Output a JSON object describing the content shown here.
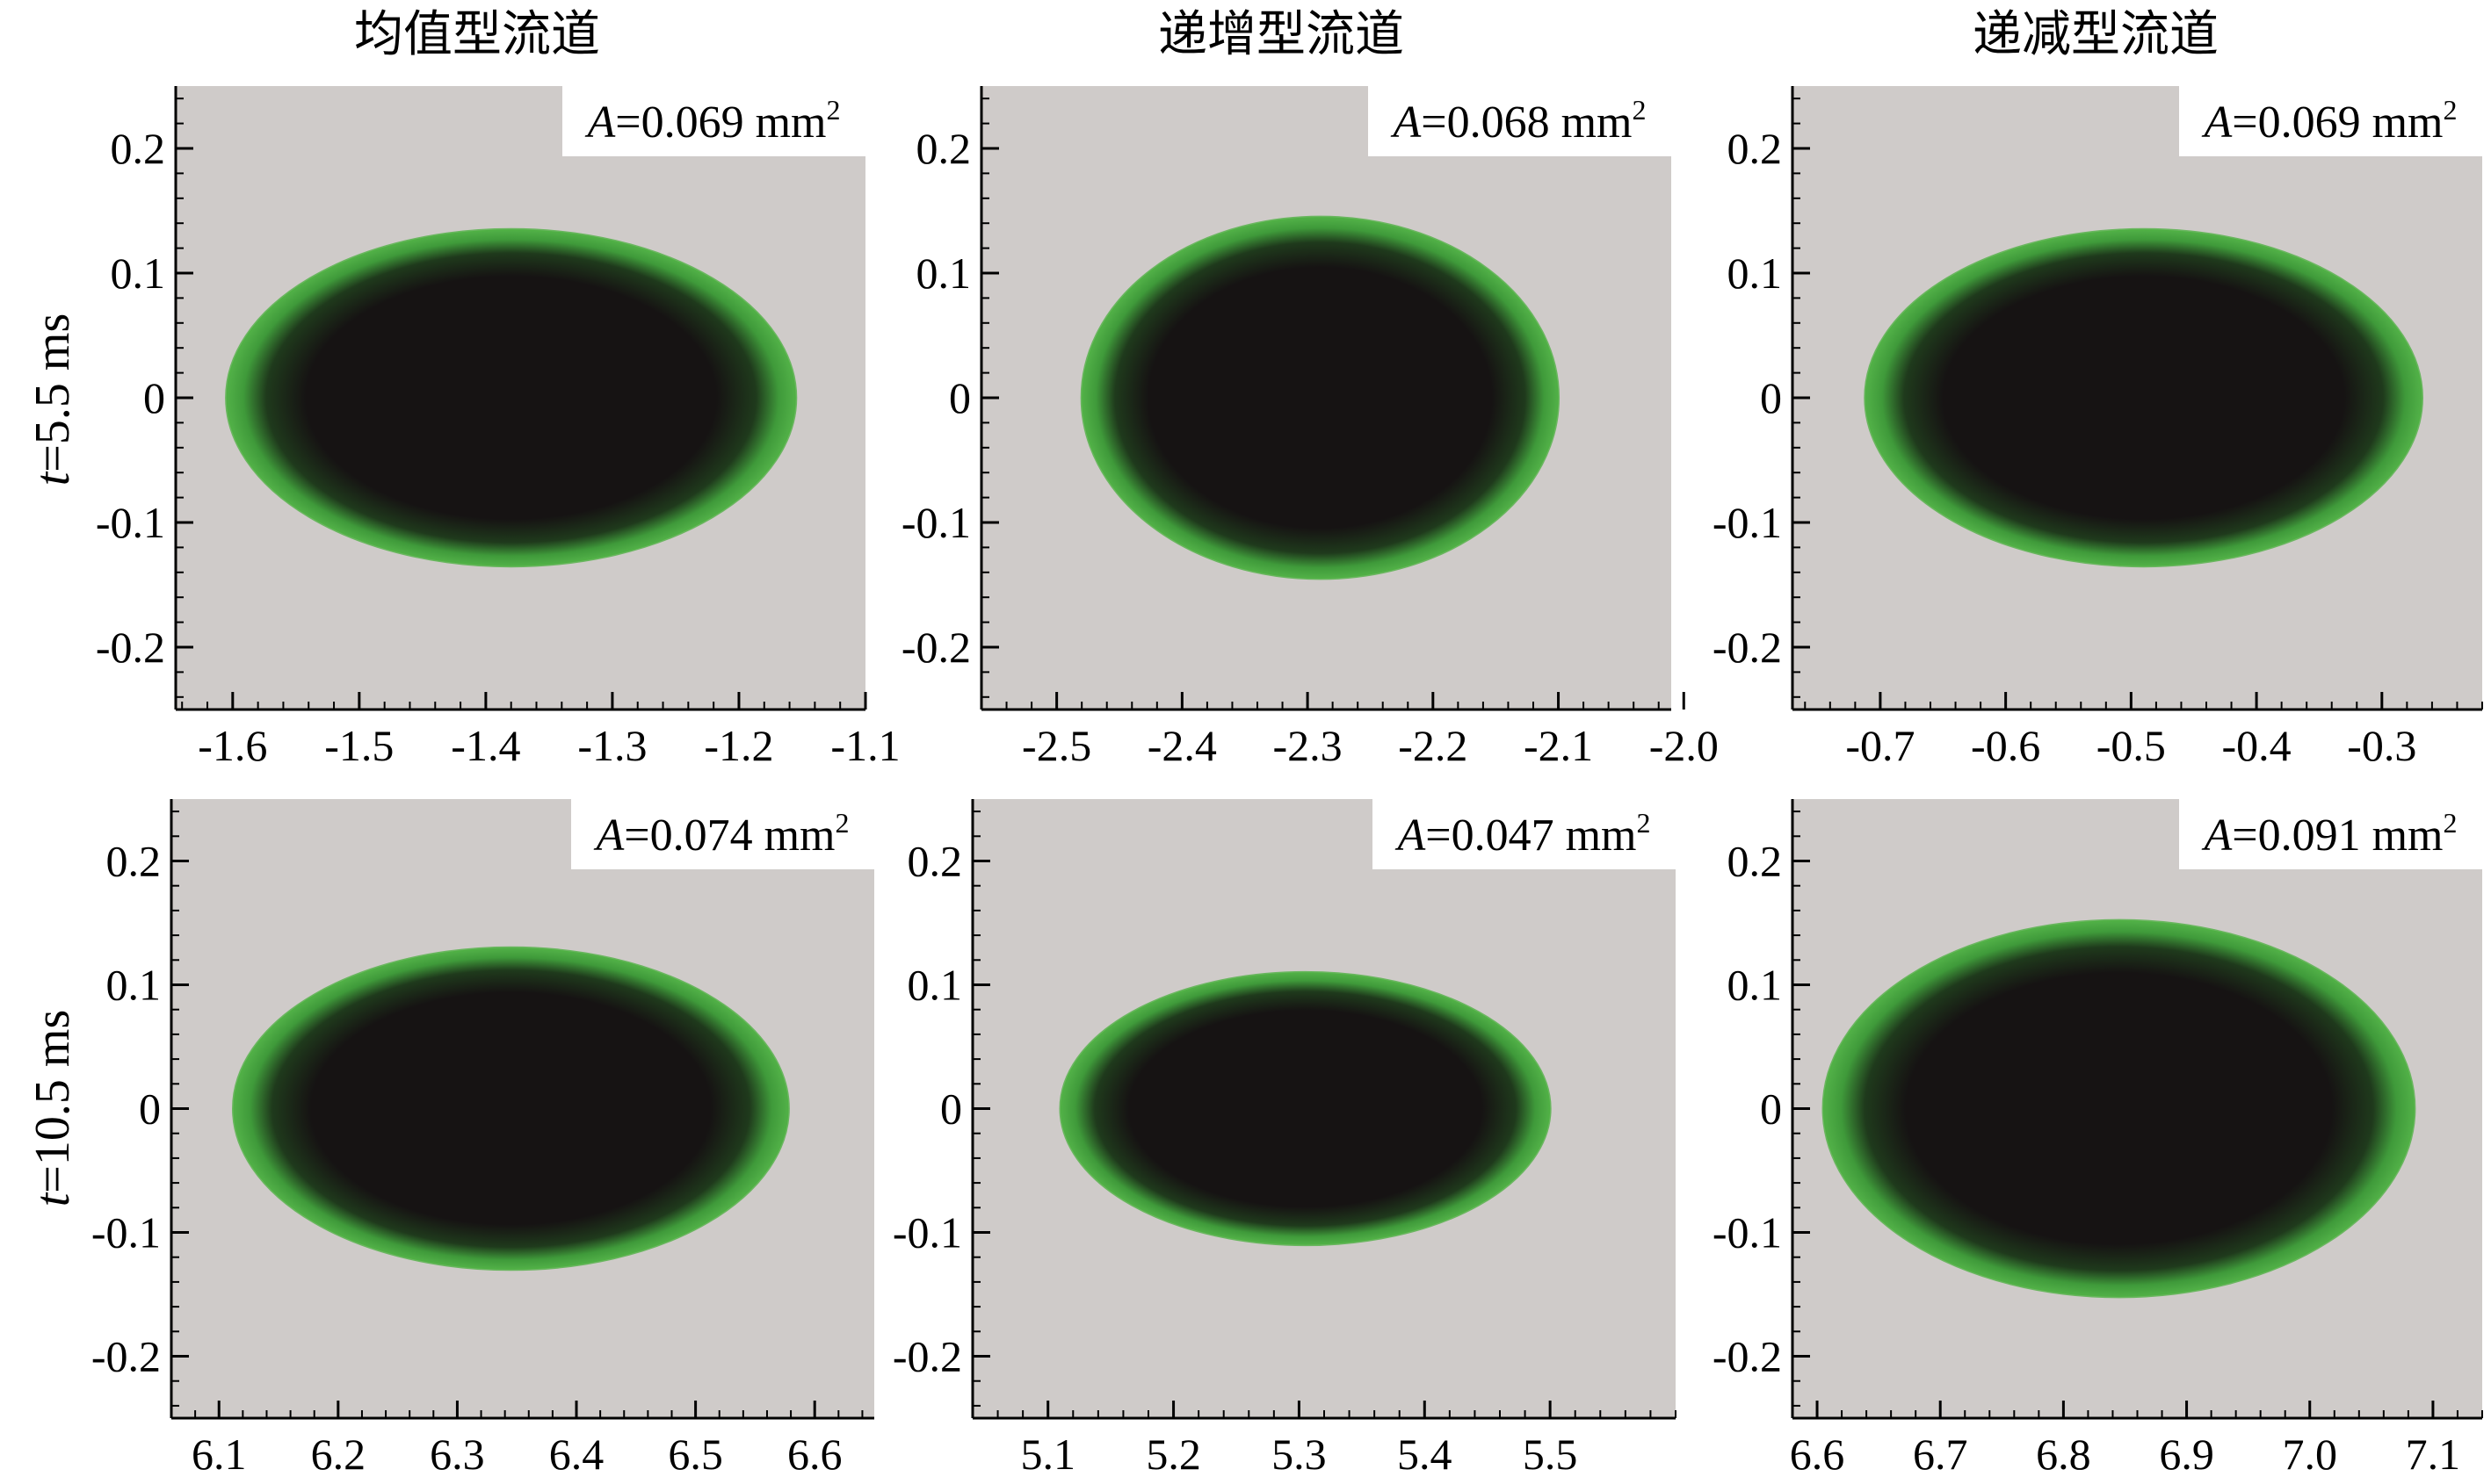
{
  "column_titles": [
    "均值型流道",
    "递增型流道",
    "递减型流道"
  ],
  "row_labels": [
    {
      "symbol": "t",
      "text": "=5.5 ms"
    },
    {
      "symbol": "t",
      "text": "=10.5 ms"
    }
  ],
  "colors": {
    "background": "#cfcbc9",
    "bubble_core": "#161313",
    "bubble_edge": "#4fb044",
    "annotation_box": "#ffffff"
  },
  "chart_data": [
    {
      "type": "contour",
      "row": 0,
      "col": 0,
      "area_symbol": "A",
      "area_text": "=0.069 mm",
      "area_sup": "2",
      "xlim": [
        -1.645,
        -1.1
      ],
      "ylim": [
        -0.25,
        0.25
      ],
      "xticks": [
        "-1.6",
        "-1.5",
        "-1.4",
        "-1.3",
        "-1.2",
        "-1.1"
      ],
      "xtick_values": [
        -1.6,
        -1.5,
        -1.4,
        -1.3,
        -1.2,
        -1.1
      ],
      "yticks": [
        "0.2",
        "0.1",
        "0",
        "-0.1",
        "-0.2"
      ],
      "ytick_values": [
        0.2,
        0.1,
        0,
        -0.1,
        -0.2
      ],
      "bubble": {
        "cx": -1.38,
        "cy": 0.0,
        "rx": 0.225,
        "ry": 0.135
      }
    },
    {
      "type": "contour",
      "row": 0,
      "col": 1,
      "area_symbol": "A",
      "area_text": "=0.068 mm",
      "area_sup": "2",
      "xlim": [
        -2.56,
        -2.01
      ],
      "ylim": [
        -0.25,
        0.25
      ],
      "xticks": [
        "-2.5",
        "-2.4",
        "-2.3",
        "-2.2",
        "-2.1",
        "-2.0"
      ],
      "xtick_values": [
        -2.5,
        -2.4,
        -2.3,
        -2.2,
        -2.1,
        -2.0
      ],
      "yticks": [
        "0.2",
        "0.1",
        "0",
        "-0.1",
        "-0.2"
      ],
      "ytick_values": [
        0.2,
        0.1,
        0,
        -0.1,
        -0.2
      ],
      "bubble": {
        "cx": -2.29,
        "cy": 0.0,
        "rx": 0.19,
        "ry": 0.145
      }
    },
    {
      "type": "contour",
      "row": 0,
      "col": 2,
      "area_symbol": "A",
      "area_text": "=0.069 mm",
      "area_sup": "2",
      "xlim": [
        -0.77,
        -0.22
      ],
      "ylim": [
        -0.25,
        0.25
      ],
      "xticks": [
        "-0.7",
        "-0.6",
        "-0.5",
        "-0.4",
        "-0.3"
      ],
      "xtick_values": [
        -0.7,
        -0.6,
        -0.5,
        -0.4,
        -0.3
      ],
      "yticks": [
        "0.2",
        "0.1",
        "0",
        "-0.1",
        "-0.2"
      ],
      "ytick_values": [
        0.2,
        0.1,
        0,
        -0.1,
        -0.2
      ],
      "bubble": {
        "cx": -0.49,
        "cy": 0.0,
        "rx": 0.222,
        "ry": 0.135
      }
    },
    {
      "type": "contour",
      "row": 1,
      "col": 0,
      "area_symbol": "A",
      "area_text": "=0.074 mm",
      "area_sup": "2",
      "xlim": [
        6.06,
        6.65
      ],
      "ylim": [
        -0.25,
        0.25
      ],
      "xticks": [
        "6.1",
        "6.2",
        "6.3",
        "6.4",
        "6.5",
        "6.6"
      ],
      "xtick_values": [
        6.1,
        6.2,
        6.3,
        6.4,
        6.5,
        6.6
      ],
      "yticks": [
        "0.2",
        "0.1",
        "0",
        "-0.1",
        "-0.2"
      ],
      "ytick_values": [
        0.2,
        0.1,
        0,
        -0.1,
        -0.2
      ],
      "bubble": {
        "cx": 6.345,
        "cy": 0.0,
        "rx": 0.233,
        "ry": 0.13
      }
    },
    {
      "type": "contour",
      "row": 1,
      "col": 1,
      "area_symbol": "A",
      "area_text": "=0.047 mm",
      "area_sup": "2",
      "xlim": [
        5.04,
        5.6
      ],
      "ylim": [
        -0.25,
        0.25
      ],
      "xticks": [
        "5.1",
        "5.2",
        "5.3",
        "5.4",
        "5.5"
      ],
      "xtick_values": [
        5.1,
        5.2,
        5.3,
        5.4,
        5.5
      ],
      "yticks": [
        "0.2",
        "0.1",
        "0",
        "-0.1",
        "-0.2"
      ],
      "ytick_values": [
        0.2,
        0.1,
        0,
        -0.1,
        -0.2
      ],
      "bubble": {
        "cx": 5.305,
        "cy": 0.0,
        "rx": 0.195,
        "ry": 0.11
      }
    },
    {
      "type": "contour",
      "row": 1,
      "col": 2,
      "area_symbol": "A",
      "area_text": "=0.091 mm",
      "area_sup": "2",
      "xlim": [
        6.58,
        7.14
      ],
      "ylim": [
        -0.25,
        0.25
      ],
      "xticks": [
        "6.6",
        "6.7",
        "6.8",
        "6.9",
        "7.0",
        "7.1"
      ],
      "xtick_values": [
        6.6,
        6.7,
        6.8,
        6.9,
        7.0,
        7.1
      ],
      "yticks": [
        "0.2",
        "0.1",
        "0",
        "-0.1",
        "-0.2"
      ],
      "ytick_values": [
        0.2,
        0.1,
        0,
        -0.1,
        -0.2
      ],
      "bubble": {
        "cx": 6.845,
        "cy": 0.0,
        "rx": 0.24,
        "ry": 0.152
      }
    }
  ]
}
